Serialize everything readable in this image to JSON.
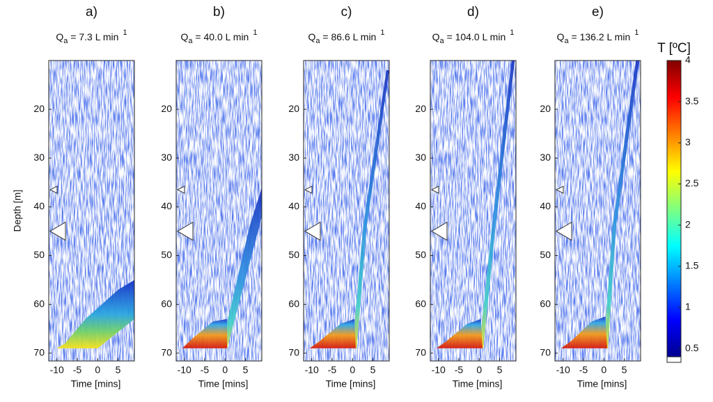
{
  "chart_data": [
    {
      "type": "heatmap",
      "label": "a)",
      "flow": {
        "symbol": "Q",
        "subscript": "a",
        "text": " = 7.3 L min",
        "superscript": "1"
      },
      "xlabel": "Time [mins]",
      "ylabel": "Depth [m]",
      "xlim": [
        -12,
        9
      ],
      "xticks": [
        -10,
        -5,
        0,
        5
      ],
      "ylim": [
        10,
        71.6
      ],
      "yticks": [
        20,
        30,
        40,
        50,
        60,
        70
      ]
    },
    {
      "type": "heatmap",
      "label": "b)",
      "flow": {
        "symbol": "Q",
        "subscript": "a",
        "text": " = 40.0 L min",
        "superscript": "1"
      },
      "xlabel": "Time [mins]",
      "xlim": [
        -12,
        9
      ],
      "xticks": [
        -10,
        -5,
        0,
        5
      ],
      "ylim": [
        10,
        71.6
      ],
      "yticks": [
        20,
        30,
        40,
        50,
        60,
        70
      ]
    },
    {
      "type": "heatmap",
      "label": "c)",
      "flow": {
        "symbol": "Q",
        "subscript": "a",
        "text": " = 86.6 L min",
        "superscript": "1"
      },
      "xlabel": "Time [mins]",
      "xlim": [
        -12,
        9
      ],
      "xticks": [
        -10,
        -5,
        0,
        5
      ],
      "ylim": [
        10,
        71.6
      ],
      "yticks": [
        20,
        30,
        40,
        50,
        60,
        70
      ]
    },
    {
      "type": "heatmap",
      "label": "d)",
      "flow": {
        "symbol": "Q",
        "subscript": "a",
        "text": " = 104.0 L min",
        "superscript": "1"
      },
      "xlabel": "Time [mins]",
      "xlim": [
        -12,
        9
      ],
      "xticks": [
        -10,
        -5,
        0,
        5
      ],
      "ylim": [
        10,
        71.6
      ],
      "yticks": [
        20,
        30,
        40,
        50,
        60,
        70
      ]
    },
    {
      "type": "heatmap",
      "label": "e)",
      "flow": {
        "symbol": "Q",
        "subscript": "a",
        "text": " = 136.2 L min",
        "superscript": "1"
      },
      "xlabel": "Time [mins]",
      "xlim": [
        -12,
        9
      ],
      "xticks": [
        -10,
        -5,
        0,
        5
      ],
      "ylim": [
        10,
        71.6
      ],
      "yticks": [
        20,
        30,
        40,
        50,
        60,
        70
      ]
    }
  ],
  "colorbar": {
    "label": "T [ºC]",
    "lim": [
      0.4,
      4
    ],
    "ticks": [
      0.5,
      1,
      1.5,
      2,
      2.5,
      3,
      3.5,
      4
    ]
  }
}
